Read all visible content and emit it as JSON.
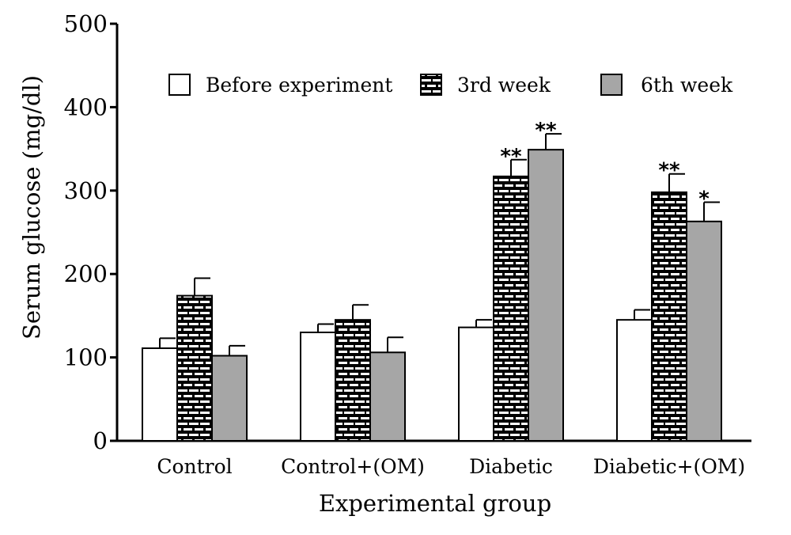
{
  "chart_data": {
    "type": "bar",
    "xlabel": "Experimental group",
    "ylabel": "Serum glucose (mg/dl)",
    "ylim": [
      0,
      500
    ],
    "yticks": [
      0,
      100,
      200,
      300,
      400,
      500
    ],
    "grid": false,
    "legend_position": "top",
    "categories": [
      "Control",
      "Control+(OM)",
      "Diabetic",
      "Diabetic+(OM)"
    ],
    "series": [
      {
        "name": "Before experiment",
        "fill": "#ffffff",
        "pattern": "none",
        "values": [
          111,
          130,
          136,
          145
        ],
        "errors": [
          12,
          10,
          9,
          12
        ],
        "significance": [
          "",
          "",
          "",
          ""
        ]
      },
      {
        "name": "3rd week",
        "fill": "#000000",
        "pattern": "brick",
        "values": [
          174,
          145,
          317,
          298
        ],
        "errors": [
          21,
          18,
          20,
          22
        ],
        "significance": [
          "",
          "",
          "**",
          "**"
        ]
      },
      {
        "name": "6th week",
        "fill": "#a6a6a6",
        "pattern": "none",
        "values": [
          102,
          106,
          349,
          263
        ],
        "errors": [
          12,
          18,
          19,
          23
        ],
        "significance": [
          "",
          "",
          "**",
          "*"
        ]
      }
    ]
  }
}
